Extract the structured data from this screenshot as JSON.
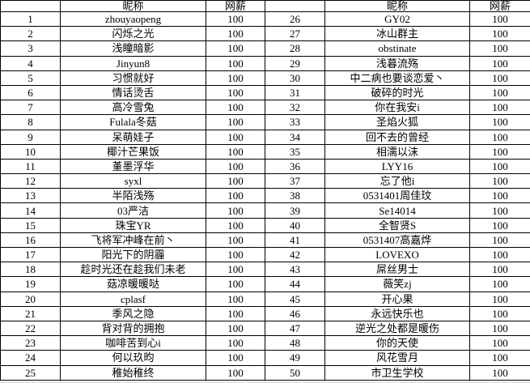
{
  "colors": {
    "border": "#000000",
    "text": "#000000",
    "background": "#ffffff",
    "gridline_gray": "#cfcfcf"
  },
  "spreadsheet": {
    "headers": {
      "rank": "",
      "nickname": "昵称",
      "salary": "网薪"
    },
    "rows": [
      {
        "rank": "1",
        "nickname": "zhouyaopeng",
        "salary": "100"
      },
      {
        "rank": "2",
        "nickname": "闪烁之光",
        "salary": "100"
      },
      {
        "rank": "3",
        "nickname": "浅瞳暗影",
        "salary": "100"
      },
      {
        "rank": "4",
        "nickname": "Jinyun8",
        "salary": "100"
      },
      {
        "rank": "5",
        "nickname": "习惯就好",
        "salary": "100"
      },
      {
        "rank": "6",
        "nickname": "情话烫舌",
        "salary": "100"
      },
      {
        "rank": "7",
        "nickname": "高冷雪兔",
        "salary": "100"
      },
      {
        "rank": "8",
        "nickname": "Fulala冬菇",
        "salary": "100"
      },
      {
        "rank": "9",
        "nickname": "呆萌娃子",
        "salary": "100"
      },
      {
        "rank": "10",
        "nickname": "椰汁芒果饭",
        "salary": "100"
      },
      {
        "rank": "11",
        "nickname": "堇墨浮华",
        "salary": "100"
      },
      {
        "rank": "12",
        "nickname": "syxl",
        "salary": "100"
      },
      {
        "rank": "13",
        "nickname": "半陌浅殇",
        "salary": "100"
      },
      {
        "rank": "14",
        "nickname": "03严洁",
        "salary": "100"
      },
      {
        "rank": "15",
        "nickname": "珠宝YR",
        "salary": "100"
      },
      {
        "rank": "16",
        "nickname": "飞将军冲峰在前丶",
        "salary": "100"
      },
      {
        "rank": "17",
        "nickname": "阳光下的阴霾",
        "salary": "100"
      },
      {
        "rank": "18",
        "nickname": "趁时光还在趁我们未老",
        "salary": "100"
      },
      {
        "rank": "19",
        "nickname": "菇凉暖暖哒",
        "salary": "100"
      },
      {
        "rank": "20",
        "nickname": "cplasf",
        "salary": "100"
      },
      {
        "rank": "21",
        "nickname": "季风之隐",
        "salary": "100"
      },
      {
        "rank": "22",
        "nickname": "背对背的拥抱",
        "salary": "100"
      },
      {
        "rank": "23",
        "nickname": "咖啡苦到心i",
        "salary": "100"
      },
      {
        "rank": "24",
        "nickname": "何以玖昀",
        "salary": "100"
      },
      {
        "rank": "25",
        "nickname": "稚始稚终",
        "salary": "100"
      },
      {
        "rank": "26",
        "nickname": "GY02",
        "salary": "100"
      },
      {
        "rank": "27",
        "nickname": "冰山群主",
        "salary": "100"
      },
      {
        "rank": "28",
        "nickname": "obstinate",
        "salary": "100"
      },
      {
        "rank": "29",
        "nickname": "浅暮流殇",
        "salary": "100"
      },
      {
        "rank": "30",
        "nickname": "中二病也要谈恋爱丶",
        "salary": "100"
      },
      {
        "rank": "31",
        "nickname": "破碎的时光",
        "salary": "100"
      },
      {
        "rank": "32",
        "nickname": "你在我安i",
        "salary": "100"
      },
      {
        "rank": "33",
        "nickname": "圣焰火狐",
        "salary": "100"
      },
      {
        "rank": "34",
        "nickname": "回不去的曾经",
        "salary": "100"
      },
      {
        "rank": "35",
        "nickname": "相濡以沫",
        "salary": "100"
      },
      {
        "rank": "36",
        "nickname": "LYY16",
        "salary": "100"
      },
      {
        "rank": "37",
        "nickname": "忘了他i",
        "salary": "100"
      },
      {
        "rank": "38",
        "nickname": "0531401周佳玟",
        "salary": "100"
      },
      {
        "rank": "39",
        "nickname": "Se14014",
        "salary": "100"
      },
      {
        "rank": "40",
        "nickname": "全智贤S",
        "salary": "100"
      },
      {
        "rank": "41",
        "nickname": "0531407高嘉烨",
        "salary": "100"
      },
      {
        "rank": "42",
        "nickname": "LOVEXO",
        "salary": "100"
      },
      {
        "rank": "43",
        "nickname": "屌丝男士",
        "salary": "100"
      },
      {
        "rank": "44",
        "nickname": "薇笑zj",
        "salary": "100"
      },
      {
        "rank": "45",
        "nickname": "开心果",
        "salary": "100"
      },
      {
        "rank": "46",
        "nickname": "永远快乐也",
        "salary": "100"
      },
      {
        "rank": "47",
        "nickname": "逆光之处都是暖伤",
        "salary": "100"
      },
      {
        "rank": "48",
        "nickname": "你的天使",
        "salary": "100"
      },
      {
        "rank": "49",
        "nickname": "风花雪月",
        "salary": "100"
      },
      {
        "rank": "50",
        "nickname": "市卫生学校",
        "salary": "100"
      }
    ]
  }
}
